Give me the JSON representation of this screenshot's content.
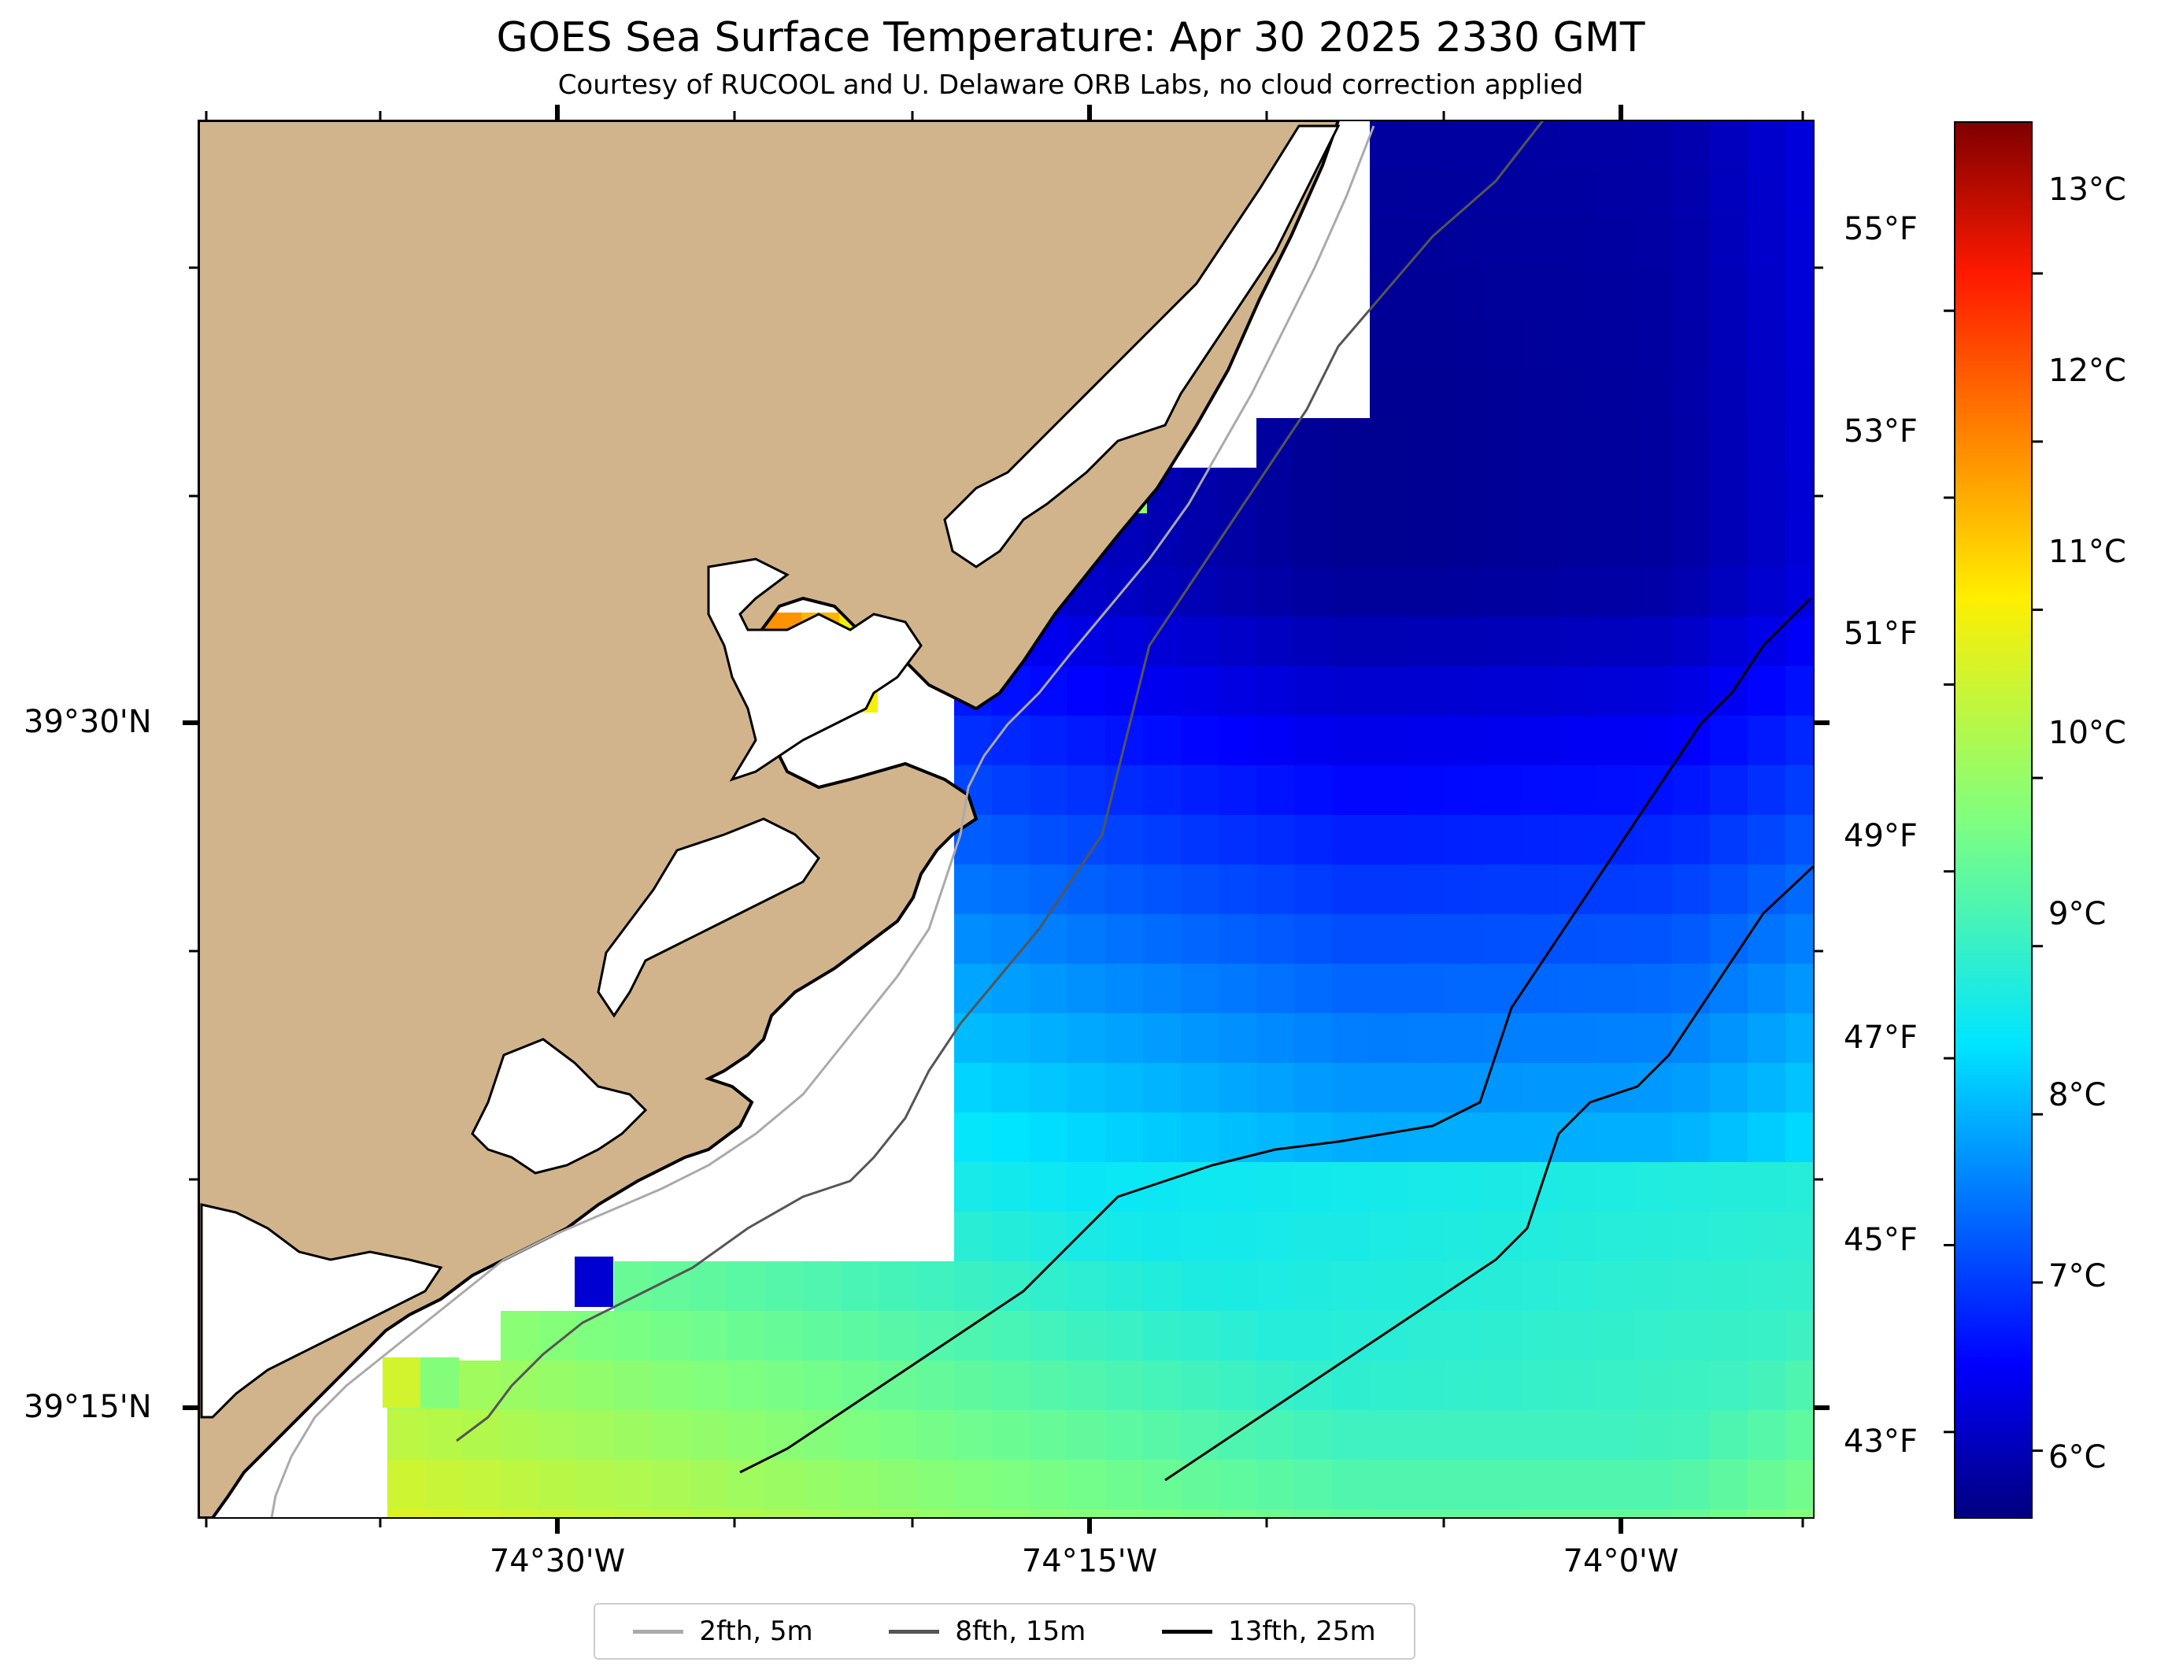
{
  "title": "GOES Sea Surface Temperature: Apr 30 2025 2330 GMT",
  "subtitle": "Courtesy of RUCOOL and U. Delaware ORB Labs, no cloud correction applied",
  "axes": {
    "lat_labels": [
      "39°30'N",
      "39°15'N"
    ],
    "lon_labels": [
      "74°30'W",
      "74°15'W",
      "74°0'W"
    ]
  },
  "legend": {
    "items": [
      {
        "label": "2fth, 5m",
        "color": "#aaaaaa"
      },
      {
        "label": "8fth, 15m",
        "color": "#555555"
      },
      {
        "label": "13fth, 25m",
        "color": "#000000"
      }
    ]
  },
  "colorbar": {
    "celsius_labels": [
      "13°C",
      "12°C",
      "11°C",
      "10°C",
      "9°C",
      "8°C",
      "7°C",
      "6°C"
    ],
    "fahrenheit_labels": [
      "55°F",
      "53°F",
      "51°F",
      "49°F",
      "47°F",
      "45°F",
      "43°F"
    ],
    "range_c": [
      5.6,
      13.9
    ]
  },
  "colors": {
    "land": "#d2b48c",
    "water_nodata": "#ffffff",
    "coast_line": "#000000"
  }
}
